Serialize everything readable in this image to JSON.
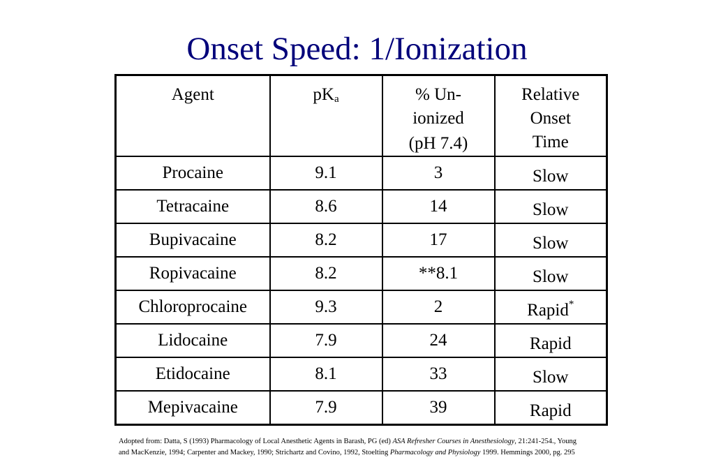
{
  "slide": {
    "title": "Onset Speed: 1/Ionization"
  },
  "table": {
    "headers": {
      "agent": "Agent",
      "pka_main": "pK",
      "pka_sub": "a",
      "unionized_line1": "% Un-",
      "unionized_line2": "ionized",
      "unionized_line3": "(pH 7.4)",
      "onset_line1": "Relative",
      "onset_line2": "Onset",
      "onset_line3": "Time"
    },
    "rows": [
      {
        "agent": "Procaine",
        "pka": "9.1",
        "unionized": "3",
        "onset": "Slow",
        "onset_mark": ""
      },
      {
        "agent": "Tetracaine",
        "pka": "8.6",
        "unionized": "14",
        "onset": "Slow",
        "onset_mark": ""
      },
      {
        "agent": "Bupivacaine",
        "pka": "8.2",
        "unionized": "17",
        "onset": "Slow",
        "onset_mark": ""
      },
      {
        "agent": "Ropivacaine",
        "pka": "8.2",
        "unionized": "**8.1",
        "onset": "Slow",
        "onset_mark": ""
      },
      {
        "agent": "Chloroprocaine",
        "pka": "9.3",
        "unionized": "2",
        "onset": "Rapid",
        "onset_mark": "*"
      },
      {
        "agent": "Lidocaine",
        "pka": "7.9",
        "unionized": "24",
        "onset": "Rapid",
        "onset_mark": ""
      },
      {
        "agent": "Etidocaine",
        "pka": "8.1",
        "unionized": "33",
        "onset": "Slow",
        "onset_mark": ""
      },
      {
        "agent": "Mepivacaine",
        "pka": "7.9",
        "unionized": "39",
        "onset": "Rapid",
        "onset_mark": ""
      }
    ]
  },
  "footnote": {
    "part1": "Adopted from: Datta, S (1993) Pharmacology of Local Anesthetic Agents in Barash, PG (ed) ",
    "part2_italic": "ASA Refresher Courses in Anesthesiology",
    "part3": ", 21:241-254., Young and MacKenzie, 1994; Carpenter and Mackey, 1990; Strichartz and Covino, 1992, Stoelting ",
    "part4_italic": "Pharmacology and Physiology",
    "part5": " 1999. Hemmings 2000, pg. 295"
  },
  "colors": {
    "title": "#00007a",
    "text": "#000000",
    "background": "#ffffff"
  }
}
